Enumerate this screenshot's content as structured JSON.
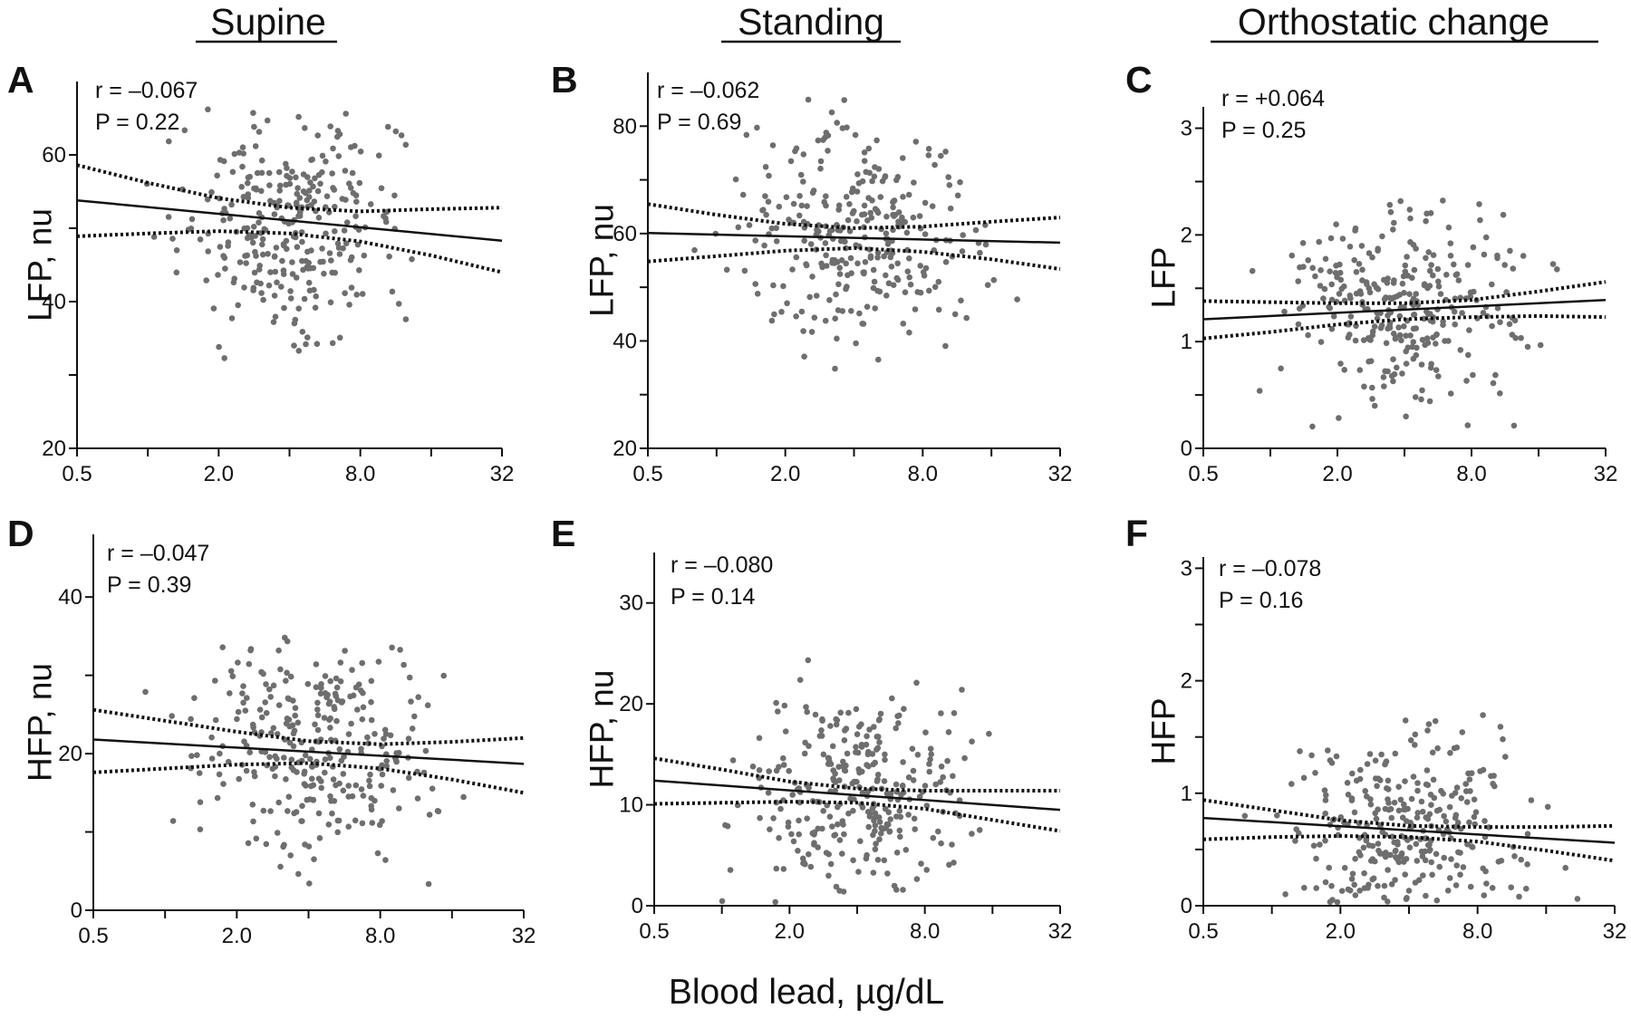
{
  "figure": {
    "column_titles": [
      "Supine",
      "Standing",
      "Orthostatic change"
    ],
    "xlabel": "Blood lead, µg/dL"
  },
  "chart_data": [
    {
      "type": "scatter",
      "panel": "A",
      "xlabel": "",
      "ylabel": "LFP, nu",
      "x_scale": "log2",
      "xlim": [
        0.5,
        32
      ],
      "x_ticks": [
        0.5,
        1,
        2,
        4,
        8,
        16,
        32
      ],
      "x_tick_labels": [
        "0.5",
        "",
        "2.0",
        "",
        "8.0",
        "",
        "32"
      ],
      "ylim": [
        20,
        70
      ],
      "y_ticks": [
        20,
        30,
        40,
        50,
        60
      ],
      "y_tick_labels": [
        "20",
        "",
        "40",
        "",
        "60"
      ],
      "stats": {
        "r": "r = –0.067",
        "p": "P = 0.22"
      },
      "regression": {
        "x": [
          0.5,
          32
        ],
        "y": [
          53.8,
          48.3
        ]
      },
      "ci_upper": {
        "x": [
          0.5,
          1,
          2,
          4,
          8,
          16,
          32
        ],
        "y": [
          58.6,
          56.2,
          54.1,
          52.8,
          52.3,
          52.6,
          52.8
        ]
      },
      "ci_lower": {
        "x": [
          0.5,
          1,
          2,
          4,
          8,
          16,
          32
        ],
        "y": [
          48.9,
          49.3,
          49.6,
          49.3,
          48.2,
          46.3,
          44.0
        ]
      },
      "point_color": "#6e6e6e"
    },
    {
      "type": "scatter",
      "panel": "B",
      "xlabel": "",
      "ylabel": "LFP, nu",
      "x_scale": "log2",
      "xlim": [
        0.5,
        32
      ],
      "x_ticks": [
        0.5,
        1,
        2,
        4,
        8,
        16,
        32
      ],
      "x_tick_labels": [
        "0.5",
        "",
        "2.0",
        "",
        "8.0",
        "",
        "32"
      ],
      "ylim": [
        20,
        90
      ],
      "y_ticks": [
        20,
        30,
        40,
        50,
        60,
        70,
        80
      ],
      "y_tick_labels": [
        "20",
        "",
        "40",
        "",
        "60",
        "",
        "80"
      ],
      "stats": {
        "r": "r = –0.062",
        "p": "P = 0.69"
      },
      "regression": {
        "x": [
          0.5,
          32
        ],
        "y": [
          60.1,
          58.3
        ]
      },
      "ci_upper": {
        "x": [
          0.5,
          1,
          2,
          4,
          8,
          16,
          32
        ],
        "y": [
          65.5,
          63.5,
          61.8,
          61.0,
          61.3,
          62.2,
          63.0
        ]
      },
      "ci_lower": {
        "x": [
          0.5,
          1,
          2,
          4,
          8,
          16,
          32
        ],
        "y": [
          54.8,
          55.8,
          56.8,
          57.3,
          56.6,
          55.2,
          53.4
        ]
      },
      "point_color": "#6e6e6e"
    },
    {
      "type": "scatter",
      "panel": "C",
      "xlabel": "",
      "ylabel": "LFP",
      "x_scale": "log2",
      "xlim": [
        0.5,
        32
      ],
      "x_ticks": [
        0.5,
        1,
        2,
        4,
        8,
        16,
        32
      ],
      "x_tick_labels": [
        "0.5",
        "",
        "2.0",
        "",
        "8.0",
        "",
        "32"
      ],
      "ylim": [
        0,
        3.2
      ],
      "y_ticks": [
        0,
        0.5,
        1,
        1.5,
        2,
        2.5,
        3
      ],
      "y_tick_labels": [
        "0",
        "",
        "1",
        "",
        "2",
        "",
        "3"
      ],
      "stats": {
        "r": "r = +0.064",
        "p": "P = 0.25"
      },
      "regression": {
        "x": [
          0.5,
          32
        ],
        "y": [
          1.21,
          1.39
        ]
      },
      "ci_upper": {
        "x": [
          0.5,
          1,
          2,
          4,
          8,
          16,
          32
        ],
        "y": [
          1.38,
          1.37,
          1.36,
          1.36,
          1.39,
          1.47,
          1.56
        ]
      },
      "ci_lower": {
        "x": [
          0.5,
          1,
          2,
          4,
          8,
          16,
          32
        ],
        "y": [
          1.03,
          1.09,
          1.16,
          1.21,
          1.23,
          1.24,
          1.23
        ]
      },
      "point_color": "#6e6e6e"
    },
    {
      "type": "scatter",
      "panel": "D",
      "xlabel": "",
      "ylabel": "HFP, nu",
      "x_scale": "log2",
      "xlim": [
        0.5,
        32
      ],
      "x_ticks": [
        0.5,
        1,
        2,
        4,
        8,
        16,
        32
      ],
      "x_tick_labels": [
        "0.5",
        "",
        "2.0",
        "",
        "8.0",
        "",
        "32"
      ],
      "ylim": [
        0,
        48
      ],
      "y_ticks": [
        0,
        10,
        20,
        30,
        40
      ],
      "y_tick_labels": [
        "0",
        "",
        "20",
        "",
        "40"
      ],
      "stats": {
        "r": "r = –0.047",
        "p": "P = 0.39"
      },
      "regression": {
        "x": [
          0.5,
          32
        ],
        "y": [
          21.8,
          18.7
        ]
      },
      "ci_upper": {
        "x": [
          0.5,
          1,
          2,
          4,
          8,
          16,
          32
        ],
        "y": [
          25.6,
          24.2,
          22.8,
          21.6,
          21.2,
          21.5,
          22.0
        ]
      },
      "ci_lower": {
        "x": [
          0.5,
          1,
          2,
          4,
          8,
          16,
          32
        ],
        "y": [
          17.6,
          18.1,
          18.6,
          18.8,
          18.1,
          16.7,
          15.0
        ]
      },
      "point_color": "#6e6e6e"
    },
    {
      "type": "scatter",
      "panel": "E",
      "xlabel": "",
      "ylabel": "HFP, nu",
      "x_scale": "log2",
      "xlim": [
        0.5,
        32
      ],
      "x_ticks": [
        0.5,
        1,
        2,
        4,
        8,
        16,
        32
      ],
      "x_tick_labels": [
        "0.5",
        "",
        "2.0",
        "",
        "8.0",
        "",
        "32"
      ],
      "ylim": [
        0,
        35
      ],
      "y_ticks": [
        0,
        10,
        20,
        30
      ],
      "y_tick_labels": [
        "0",
        "10",
        "20",
        "30"
      ],
      "stats": {
        "r": "r = –0.080",
        "p": "P = 0.14"
      },
      "regression": {
        "x": [
          0.5,
          32
        ],
        "y": [
          12.4,
          9.5
        ]
      },
      "ci_upper": {
        "x": [
          0.5,
          1,
          2,
          4,
          8,
          16,
          32
        ],
        "y": [
          14.6,
          13.5,
          12.3,
          11.6,
          11.4,
          11.4,
          11.4
        ]
      },
      "ci_lower": {
        "x": [
          0.5,
          1,
          2,
          4,
          8,
          16,
          32
        ],
        "y": [
          10.1,
          10.2,
          10.3,
          10.2,
          9.6,
          8.5,
          7.4
        ]
      },
      "point_color": "#6e6e6e"
    },
    {
      "type": "scatter",
      "panel": "F",
      "xlabel": "",
      "ylabel": "HFP",
      "x_scale": "log2",
      "xlim": [
        0.5,
        32
      ],
      "x_ticks": [
        0.5,
        1,
        2,
        4,
        8,
        16,
        32
      ],
      "x_tick_labels": [
        "0.5",
        "",
        "2.0",
        "",
        "8.0",
        "",
        "32"
      ],
      "ylim": [
        0,
        3.1
      ],
      "y_ticks": [
        0,
        0.5,
        1,
        1.5,
        2,
        2.5,
        3
      ],
      "y_tick_labels": [
        "0",
        "",
        "1",
        "",
        "2",
        "",
        "3"
      ],
      "stats": {
        "r": "r = –0.078",
        "p": "P = 0.16"
      },
      "regression": {
        "x": [
          0.5,
          32
        ],
        "y": [
          0.78,
          0.56
        ]
      },
      "ci_upper": {
        "x": [
          0.5,
          1,
          2,
          4,
          8,
          16,
          32
        ],
        "y": [
          0.94,
          0.85,
          0.76,
          0.71,
          0.7,
          0.7,
          0.71
        ]
      },
      "ci_lower": {
        "x": [
          0.5,
          1,
          2,
          4,
          8,
          16,
          32
        ],
        "y": [
          0.59,
          0.61,
          0.62,
          0.61,
          0.57,
          0.49,
          0.4
        ]
      },
      "point_color": "#6e6e6e"
    }
  ]
}
